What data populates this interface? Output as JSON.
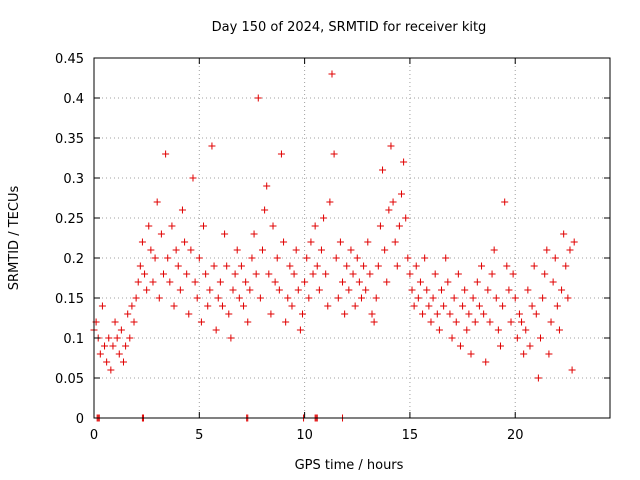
{
  "chart_data": {
    "type": "scatter",
    "title": "Day 150 of 2024, SRMTID for receiver kitg",
    "xlabel": "GPS time / hours",
    "ylabel": "SRMTID / TECUs",
    "xlim": [
      0,
      24.5
    ],
    "ylim": [
      0,
      0.45
    ],
    "xticks": [
      0,
      5,
      10,
      15,
      20
    ],
    "xtick_labels": [
      "0",
      "5",
      "10",
      "15",
      "20"
    ],
    "yticks": [
      0,
      0.05,
      0.1,
      0.15,
      0.2,
      0.25,
      0.3,
      0.35,
      0.4,
      0.45
    ],
    "ytick_labels": [
      "0",
      "0.05",
      "0.1",
      "0.15",
      "0.2",
      "0.25",
      "0.3",
      "0.35",
      "0.4",
      "0.45"
    ],
    "grid": true,
    "marker": "+",
    "color": "#e00000",
    "series": [
      {
        "name": "SRMTID",
        "x": [
          0.0,
          0.1,
          0.2,
          0.3,
          0.4,
          0.5,
          0.6,
          0.7,
          0.8,
          0.9,
          1.0,
          1.1,
          1.2,
          1.3,
          1.4,
          1.5,
          1.6,
          1.7,
          1.8,
          1.9,
          2.0,
          2.1,
          2.2,
          2.3,
          2.4,
          2.5,
          2.6,
          2.7,
          2.8,
          2.9,
          3.0,
          3.1,
          3.2,
          3.3,
          3.4,
          3.5,
          3.6,
          3.7,
          3.8,
          3.9,
          4.0,
          4.1,
          4.2,
          4.3,
          4.4,
          4.5,
          4.6,
          4.7,
          4.8,
          4.9,
          5.0,
          5.1,
          5.2,
          5.3,
          5.4,
          5.5,
          5.6,
          5.7,
          5.8,
          5.9,
          6.0,
          6.1,
          6.2,
          6.3,
          6.4,
          6.5,
          6.6,
          6.7,
          6.8,
          6.9,
          7.0,
          7.1,
          7.2,
          7.3,
          7.4,
          7.5,
          7.6,
          7.7,
          7.8,
          7.9,
          8.0,
          8.1,
          8.2,
          8.3,
          8.4,
          8.5,
          8.6,
          8.7,
          8.8,
          8.9,
          9.0,
          9.1,
          9.2,
          9.3,
          9.4,
          9.5,
          9.6,
          9.7,
          9.8,
          9.9,
          10.0,
          10.1,
          10.2,
          10.3,
          10.4,
          10.5,
          10.6,
          10.7,
          10.8,
          10.9,
          11.0,
          11.1,
          11.2,
          11.3,
          11.4,
          11.5,
          11.6,
          11.7,
          11.8,
          11.9,
          12.0,
          12.1,
          12.2,
          12.3,
          12.4,
          12.5,
          12.6,
          12.7,
          12.8,
          12.9,
          13.0,
          13.1,
          13.2,
          13.3,
          13.4,
          13.5,
          13.6,
          13.7,
          13.8,
          13.9,
          14.0,
          14.1,
          14.2,
          14.3,
          14.4,
          14.5,
          14.6,
          14.7,
          14.8,
          14.9,
          15.0,
          15.1,
          15.2,
          15.3,
          15.4,
          15.5,
          15.6,
          15.7,
          15.8,
          15.9,
          16.0,
          16.1,
          16.2,
          16.3,
          16.4,
          16.5,
          16.6,
          16.7,
          16.8,
          16.9,
          17.0,
          17.1,
          17.2,
          17.3,
          17.4,
          17.5,
          17.6,
          17.7,
          17.8,
          17.9,
          18.0,
          18.1,
          18.2,
          18.3,
          18.4,
          18.5,
          18.6,
          18.7,
          18.8,
          18.9,
          19.0,
          19.1,
          19.2,
          19.3,
          19.4,
          19.5,
          19.6,
          19.7,
          19.8,
          19.9,
          20.0,
          20.1,
          20.2,
          20.3,
          20.4,
          20.5,
          20.6,
          20.7,
          20.8,
          20.9,
          21.0,
          21.1,
          21.2,
          21.3,
          21.4,
          21.5,
          21.6,
          21.7,
          21.8,
          21.9,
          22.0,
          22.1,
          22.2,
          22.3,
          22.4,
          22.5,
          22.6,
          22.7,
          22.8,
          0.15,
          0.2,
          0.25,
          2.3,
          2.35,
          7.25,
          7.3,
          9.95,
          10.5,
          10.55,
          10.6,
          11.8
        ],
        "y": [
          0.11,
          0.12,
          0.1,
          0.08,
          0.14,
          0.09,
          0.07,
          0.1,
          0.06,
          0.09,
          0.12,
          0.1,
          0.08,
          0.11,
          0.07,
          0.09,
          0.13,
          0.1,
          0.14,
          0.12,
          0.15,
          0.17,
          0.19,
          0.22,
          0.18,
          0.16,
          0.24,
          0.21,
          0.17,
          0.2,
          0.27,
          0.15,
          0.23,
          0.18,
          0.33,
          0.2,
          0.17,
          0.24,
          0.14,
          0.21,
          0.19,
          0.16,
          0.26,
          0.22,
          0.18,
          0.13,
          0.21,
          0.3,
          0.17,
          0.15,
          0.2,
          0.12,
          0.24,
          0.18,
          0.14,
          0.16,
          0.34,
          0.19,
          0.11,
          0.15,
          0.17,
          0.14,
          0.23,
          0.19,
          0.13,
          0.1,
          0.16,
          0.18,
          0.21,
          0.15,
          0.19,
          0.14,
          0.17,
          0.12,
          0.16,
          0.2,
          0.23,
          0.18,
          0.4,
          0.15,
          0.21,
          0.26,
          0.29,
          0.18,
          0.13,
          0.24,
          0.17,
          0.2,
          0.16,
          0.33,
          0.22,
          0.12,
          0.15,
          0.19,
          0.14,
          0.18,
          0.21,
          0.16,
          0.11,
          0.13,
          0.17,
          0.2,
          0.15,
          0.22,
          0.18,
          0.24,
          0.19,
          0.16,
          0.21,
          0.25,
          0.18,
          0.14,
          0.27,
          0.43,
          0.33,
          0.2,
          0.15,
          0.22,
          0.17,
          0.13,
          0.19,
          0.16,
          0.21,
          0.18,
          0.14,
          0.2,
          0.17,
          0.15,
          0.19,
          0.16,
          0.22,
          0.18,
          0.13,
          0.12,
          0.15,
          0.19,
          0.24,
          0.31,
          0.21,
          0.17,
          0.26,
          0.34,
          0.27,
          0.22,
          0.19,
          0.24,
          0.28,
          0.32,
          0.25,
          0.2,
          0.18,
          0.16,
          0.14,
          0.19,
          0.15,
          0.17,
          0.13,
          0.2,
          0.16,
          0.14,
          0.12,
          0.15,
          0.18,
          0.13,
          0.11,
          0.16,
          0.14,
          0.2,
          0.17,
          0.13,
          0.1,
          0.15,
          0.12,
          0.18,
          0.09,
          0.14,
          0.16,
          0.11,
          0.13,
          0.08,
          0.15,
          0.12,
          0.17,
          0.14,
          0.19,
          0.13,
          0.07,
          0.16,
          0.12,
          0.18,
          0.21,
          0.15,
          0.11,
          0.09,
          0.14,
          0.27,
          0.19,
          0.16,
          0.12,
          0.18,
          0.15,
          0.1,
          0.13,
          0.12,
          0.08,
          0.11,
          0.16,
          0.09,
          0.14,
          0.19,
          0.13,
          0.05,
          0.1,
          0.15,
          0.18,
          0.21,
          0.08,
          0.12,
          0.17,
          0.2,
          0.14,
          0.11,
          0.16,
          0.23,
          0.19,
          0.15,
          0.21,
          0.06,
          0.22,
          0.0,
          0.0,
          0.0,
          0.0,
          0.0,
          0.0,
          0.0,
          0.0,
          0.0,
          0.0,
          0.0,
          0.0
        ]
      }
    ]
  }
}
